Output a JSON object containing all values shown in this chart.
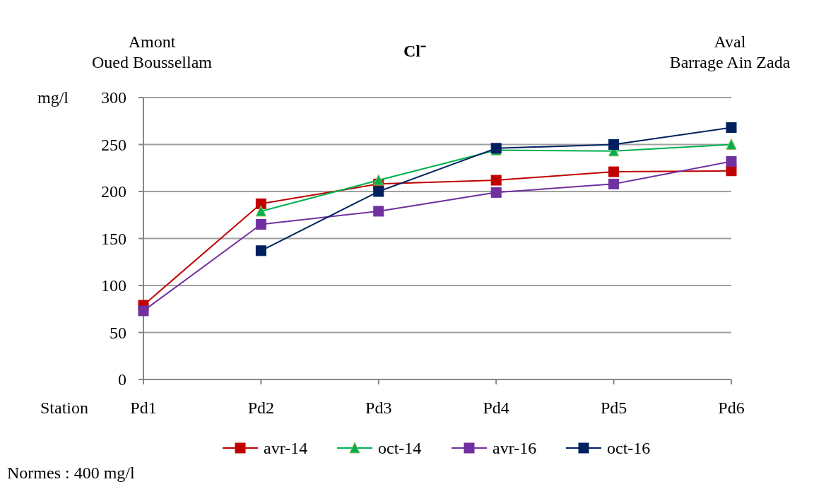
{
  "chart_data": {
    "type": "line",
    "title": "Cl⁻",
    "ylabel": "mg/l",
    "xlabel": "Station",
    "annotations": [
      "Amont\nOued Boussellam",
      "Aval\nBarrage Ain Zada",
      "Normes : 400 mg/l"
    ],
    "categories": [
      "Pd1",
      "Pd2",
      "Pd3",
      "Pd4",
      "Pd5",
      "Pd6"
    ],
    "series": [
      {
        "name": "avr-14",
        "color": "#c00000",
        "marker": "square",
        "values": [
          79,
          187,
          208,
          212,
          221,
          222
        ]
      },
      {
        "name": "oct-14",
        "color": "#00b050",
        "marker": "triangle",
        "values": [
          null,
          179,
          212,
          244,
          243,
          250
        ]
      },
      {
        "name": "avr-16",
        "color": "#7030a0",
        "marker": "square",
        "values": [
          73,
          165,
          179,
          199,
          208,
          232
        ]
      },
      {
        "name": "oct-16",
        "color": "#002060",
        "marker": "square",
        "values": [
          null,
          137,
          200,
          246,
          250,
          268
        ]
      }
    ],
    "ylim": [
      0,
      300
    ],
    "yticks": [
      0,
      50,
      100,
      150,
      200,
      250,
      300
    ],
    "grid": "y",
    "legend": "bottom",
    "line_style": "solid"
  }
}
